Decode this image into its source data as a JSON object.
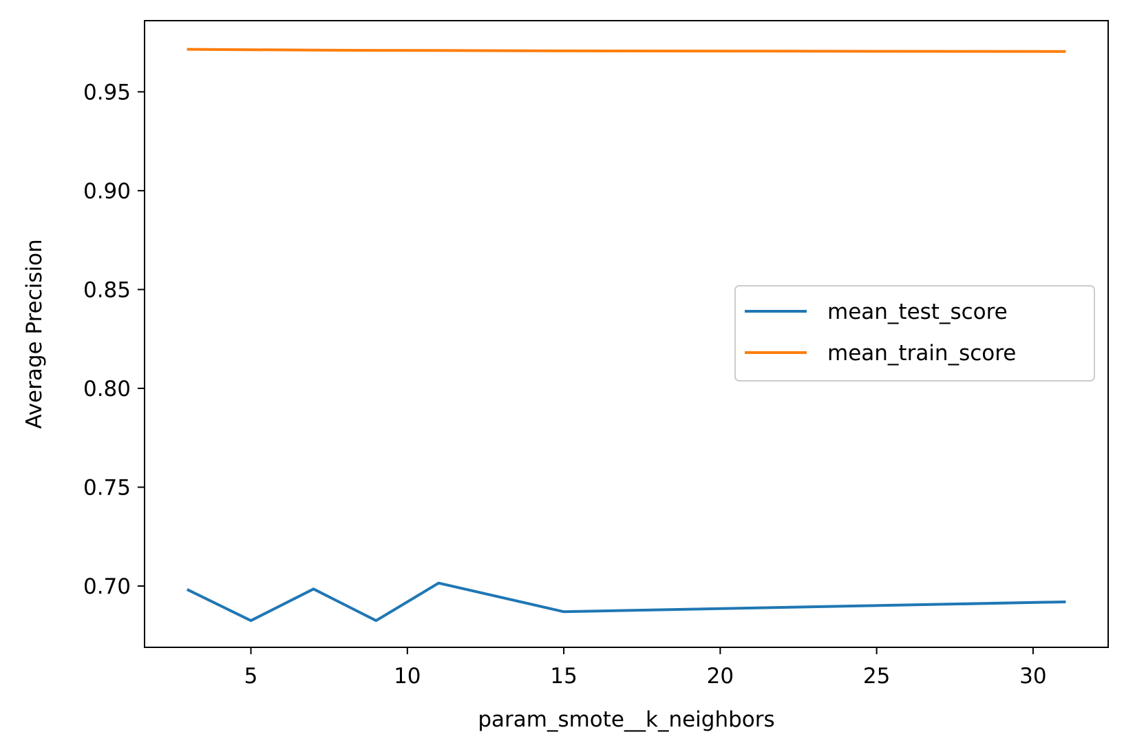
{
  "chart_data": {
    "type": "line",
    "title": "",
    "xlabel": "param_smote__k_neighbors",
    "ylabel": "Average Precision",
    "xlim": [
      1.6,
      32.4
    ],
    "ylim": [
      0.669,
      0.986
    ],
    "xticks": [
      5,
      10,
      15,
      20,
      25,
      30
    ],
    "yticks": [
      0.7,
      0.75,
      0.8,
      0.85,
      0.9,
      0.95
    ],
    "xtick_labels": [
      "5",
      "10",
      "15",
      "20",
      "25",
      "30"
    ],
    "ytick_labels": [
      "0.70",
      "0.75",
      "0.80",
      "0.85",
      "0.90",
      "0.95"
    ],
    "grid": false,
    "legend_position": "center-right",
    "x": [
      3,
      5,
      7,
      9,
      11,
      15,
      31
    ],
    "series": [
      {
        "name": "mean_test_score",
        "color": "#1f77b4",
        "values": [
          0.698,
          0.6825,
          0.6985,
          0.6825,
          0.7015,
          0.687,
          0.692
        ]
      },
      {
        "name": "mean_train_score",
        "color": "#ff7f0e",
        "values": [
          0.9715,
          0.9713,
          0.9711,
          0.971,
          0.9709,
          0.9707,
          0.9704
        ]
      }
    ]
  }
}
